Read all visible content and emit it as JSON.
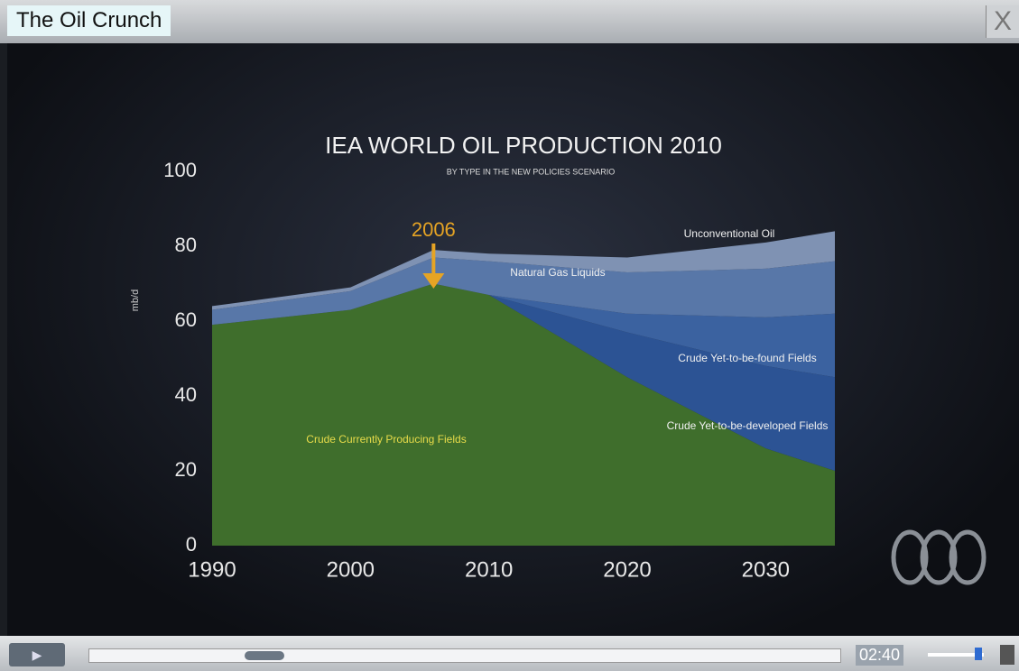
{
  "window": {
    "title": "The Oil Crunch"
  },
  "player": {
    "time": "02:40"
  },
  "chart_data": {
    "type": "stacked-area",
    "title": "IEA WORLD OIL PRODUCTION 2010",
    "subtitle": "BY TYPE IN THE NEW POLICIES SCENARIO",
    "ylabel": "mb/d",
    "x": [
      1990,
      2000,
      2006,
      2010,
      2020,
      2030,
      2035
    ],
    "series": [
      {
        "name": "Crude Currently Producing Fields",
        "color": "#3f6e2c",
        "values": [
          59,
          63,
          70,
          67,
          45,
          26,
          20
        ]
      },
      {
        "name": "Crude Yet-to-be-developed Fields",
        "color": "#2c5394",
        "values": [
          0,
          0,
          0,
          0,
          12,
          22,
          25
        ]
      },
      {
        "name": "Crude Yet-to-be-found Fields",
        "color": "#3b62a0",
        "values": [
          0,
          0,
          0,
          0,
          5,
          13,
          17
        ]
      },
      {
        "name": "Natural Gas Liquids",
        "color": "#5877a8",
        "values": [
          4,
          5,
          7,
          9,
          11,
          13,
          14
        ]
      },
      {
        "name": "Unconventional Oil",
        "color": "#7f92b3",
        "values": [
          1,
          1,
          2,
          2,
          4,
          7,
          8
        ]
      }
    ],
    "annotation": {
      "x": 2006
    },
    "xlim": [
      1990,
      2035
    ],
    "xticks": [
      1990,
      2000,
      2010,
      2020,
      2030
    ],
    "ylim": [
      0,
      100
    ],
    "yticks": [
      0,
      20,
      40,
      60,
      80,
      100
    ]
  }
}
